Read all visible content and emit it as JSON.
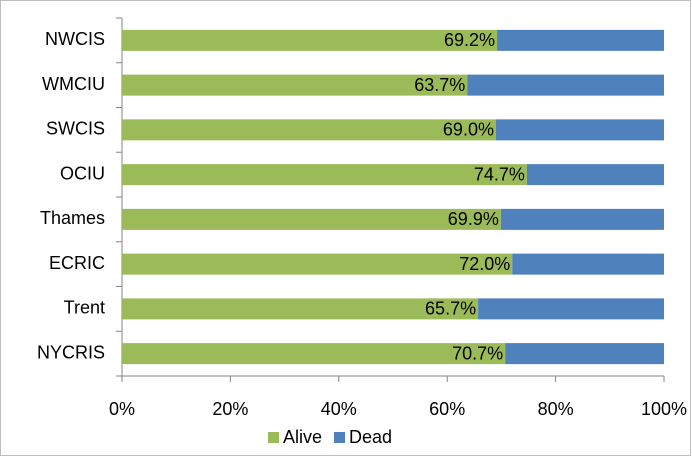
{
  "chart_data": {
    "type": "stacked-barh",
    "categories": [
      "NWCIS",
      "WMCIU",
      "SWCIS",
      "OCIU",
      "Thames",
      "ECRIC",
      "Trent",
      "NYCRIS"
    ],
    "series": [
      {
        "name": "Alive",
        "color": "#9bbb59",
        "values": [
          69.2,
          63.7,
          69.0,
          74.7,
          69.9,
          72.0,
          65.7,
          70.7
        ],
        "value_labels": [
          "69.2%",
          "63.7%",
          "69.0%",
          "74.7%",
          "69.9%",
          "72.0%",
          "65.7%",
          "70.7%"
        ]
      },
      {
        "name": "Dead",
        "color": "#4f81bd",
        "values": [
          30.8,
          36.3,
          31.0,
          25.3,
          30.1,
          28.0,
          34.3,
          29.3
        ]
      }
    ],
    "xlim": [
      0,
      100
    ],
    "xticks": [
      {
        "value": 0,
        "label": "0%"
      },
      {
        "value": 20,
        "label": "20%"
      },
      {
        "value": 40,
        "label": "40%"
      },
      {
        "value": 60,
        "label": "60%"
      },
      {
        "value": 80,
        "label": "80%"
      },
      {
        "value": 100,
        "label": "100%"
      }
    ],
    "grid": false
  }
}
